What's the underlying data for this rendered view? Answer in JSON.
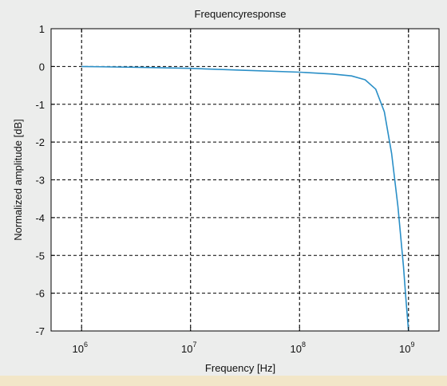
{
  "chart_data": {
    "type": "line",
    "title": "Frequencyresponse",
    "xlabel": "Frequency [Hz]",
    "ylabel": "Normalized amplitude [dB]",
    "x_scale": "log",
    "xlim": [
      1000000,
      1000000000
    ],
    "ylim": [
      -7,
      1
    ],
    "x_ticks": [
      {
        "value": 1000000,
        "base": "10",
        "exp": "6"
      },
      {
        "value": 10000000,
        "base": "10",
        "exp": "7"
      },
      {
        "value": 100000000,
        "base": "10",
        "exp": "8"
      },
      {
        "value": 1000000000,
        "base": "10",
        "exp": "9"
      }
    ],
    "y_ticks": [
      "1",
      "0",
      "-1",
      "-2",
      "-3",
      "-4",
      "-5",
      "-6",
      "-7"
    ],
    "grid": true,
    "series": [
      {
        "color": "#2a8fc7",
        "x": [
          1000000,
          3000000,
          10000000,
          30000000,
          100000000,
          200000000,
          300000000,
          400000000,
          500000000,
          600000000,
          700000000,
          800000000,
          900000000,
          950000000,
          1000000000
        ],
        "y": [
          0.0,
          -0.02,
          -0.05,
          -0.1,
          -0.15,
          -0.2,
          -0.25,
          -0.35,
          -0.6,
          -1.2,
          -2.3,
          -3.7,
          -5.3,
          -6.2,
          -7.0
        ]
      }
    ]
  }
}
